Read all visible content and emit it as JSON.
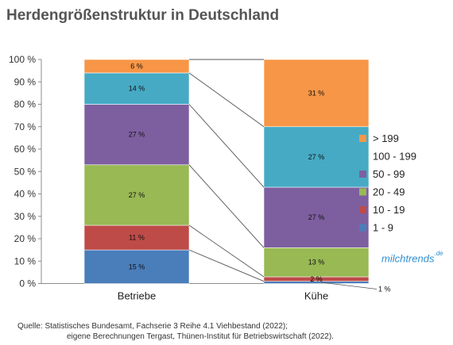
{
  "title": "Herdengrößenstruktur in Deutschland",
  "source": {
    "line1": "Quelle: Statistisches Bundesamt, Fachserie 3 Reihe 4.1 Viehbestand (2022);",
    "line2": "eigene Berechnungen Tergast, Thünen-Institut für Betriebswirtschaft (2022)."
  },
  "logo": {
    "text": "milchtrends",
    "suffix": ".de"
  },
  "chart_data": {
    "type": "bar",
    "stacked": true,
    "percent": true,
    "categories": [
      "Betriebe",
      "Kühe"
    ],
    "ylim": [
      0,
      100
    ],
    "yticks": [
      0,
      10,
      20,
      30,
      40,
      50,
      60,
      70,
      80,
      90,
      100
    ],
    "ytick_labels": [
      "0 %",
      "10 %",
      "20 %",
      "30 %",
      "40 %",
      "50 %",
      "60 %",
      "70 %",
      "80 %",
      "90 %",
      "100 %"
    ],
    "legend_position": "right",
    "grid": false,
    "series": [
      {
        "name": "1 - 9",
        "color": "#4a7ebb",
        "values": [
          15,
          1
        ],
        "labels": [
          "15 %",
          "1 %"
        ]
      },
      {
        "name": "10 - 19",
        "color": "#be4b48",
        "values": [
          11,
          2
        ],
        "labels": [
          "11 %",
          "2 %"
        ]
      },
      {
        "name": "20 - 49",
        "color": "#98b954",
        "values": [
          27,
          13
        ],
        "labels": [
          "27 %",
          "13 %"
        ]
      },
      {
        "name": "50 - 99",
        "color": "#7d5fa0",
        "values": [
          27,
          27
        ],
        "labels": [
          "27 %",
          "27 %"
        ]
      },
      {
        "name": "100 - 199",
        "color": "#46aac5",
        "values": [
          14,
          27
        ],
        "labels": [
          "14 %",
          "27 %"
        ]
      },
      {
        "name": "> 199",
        "color": "#f79646",
        "values": [
          6,
          31
        ],
        "labels": [
          "6 %",
          "31 %"
        ]
      }
    ]
  }
}
